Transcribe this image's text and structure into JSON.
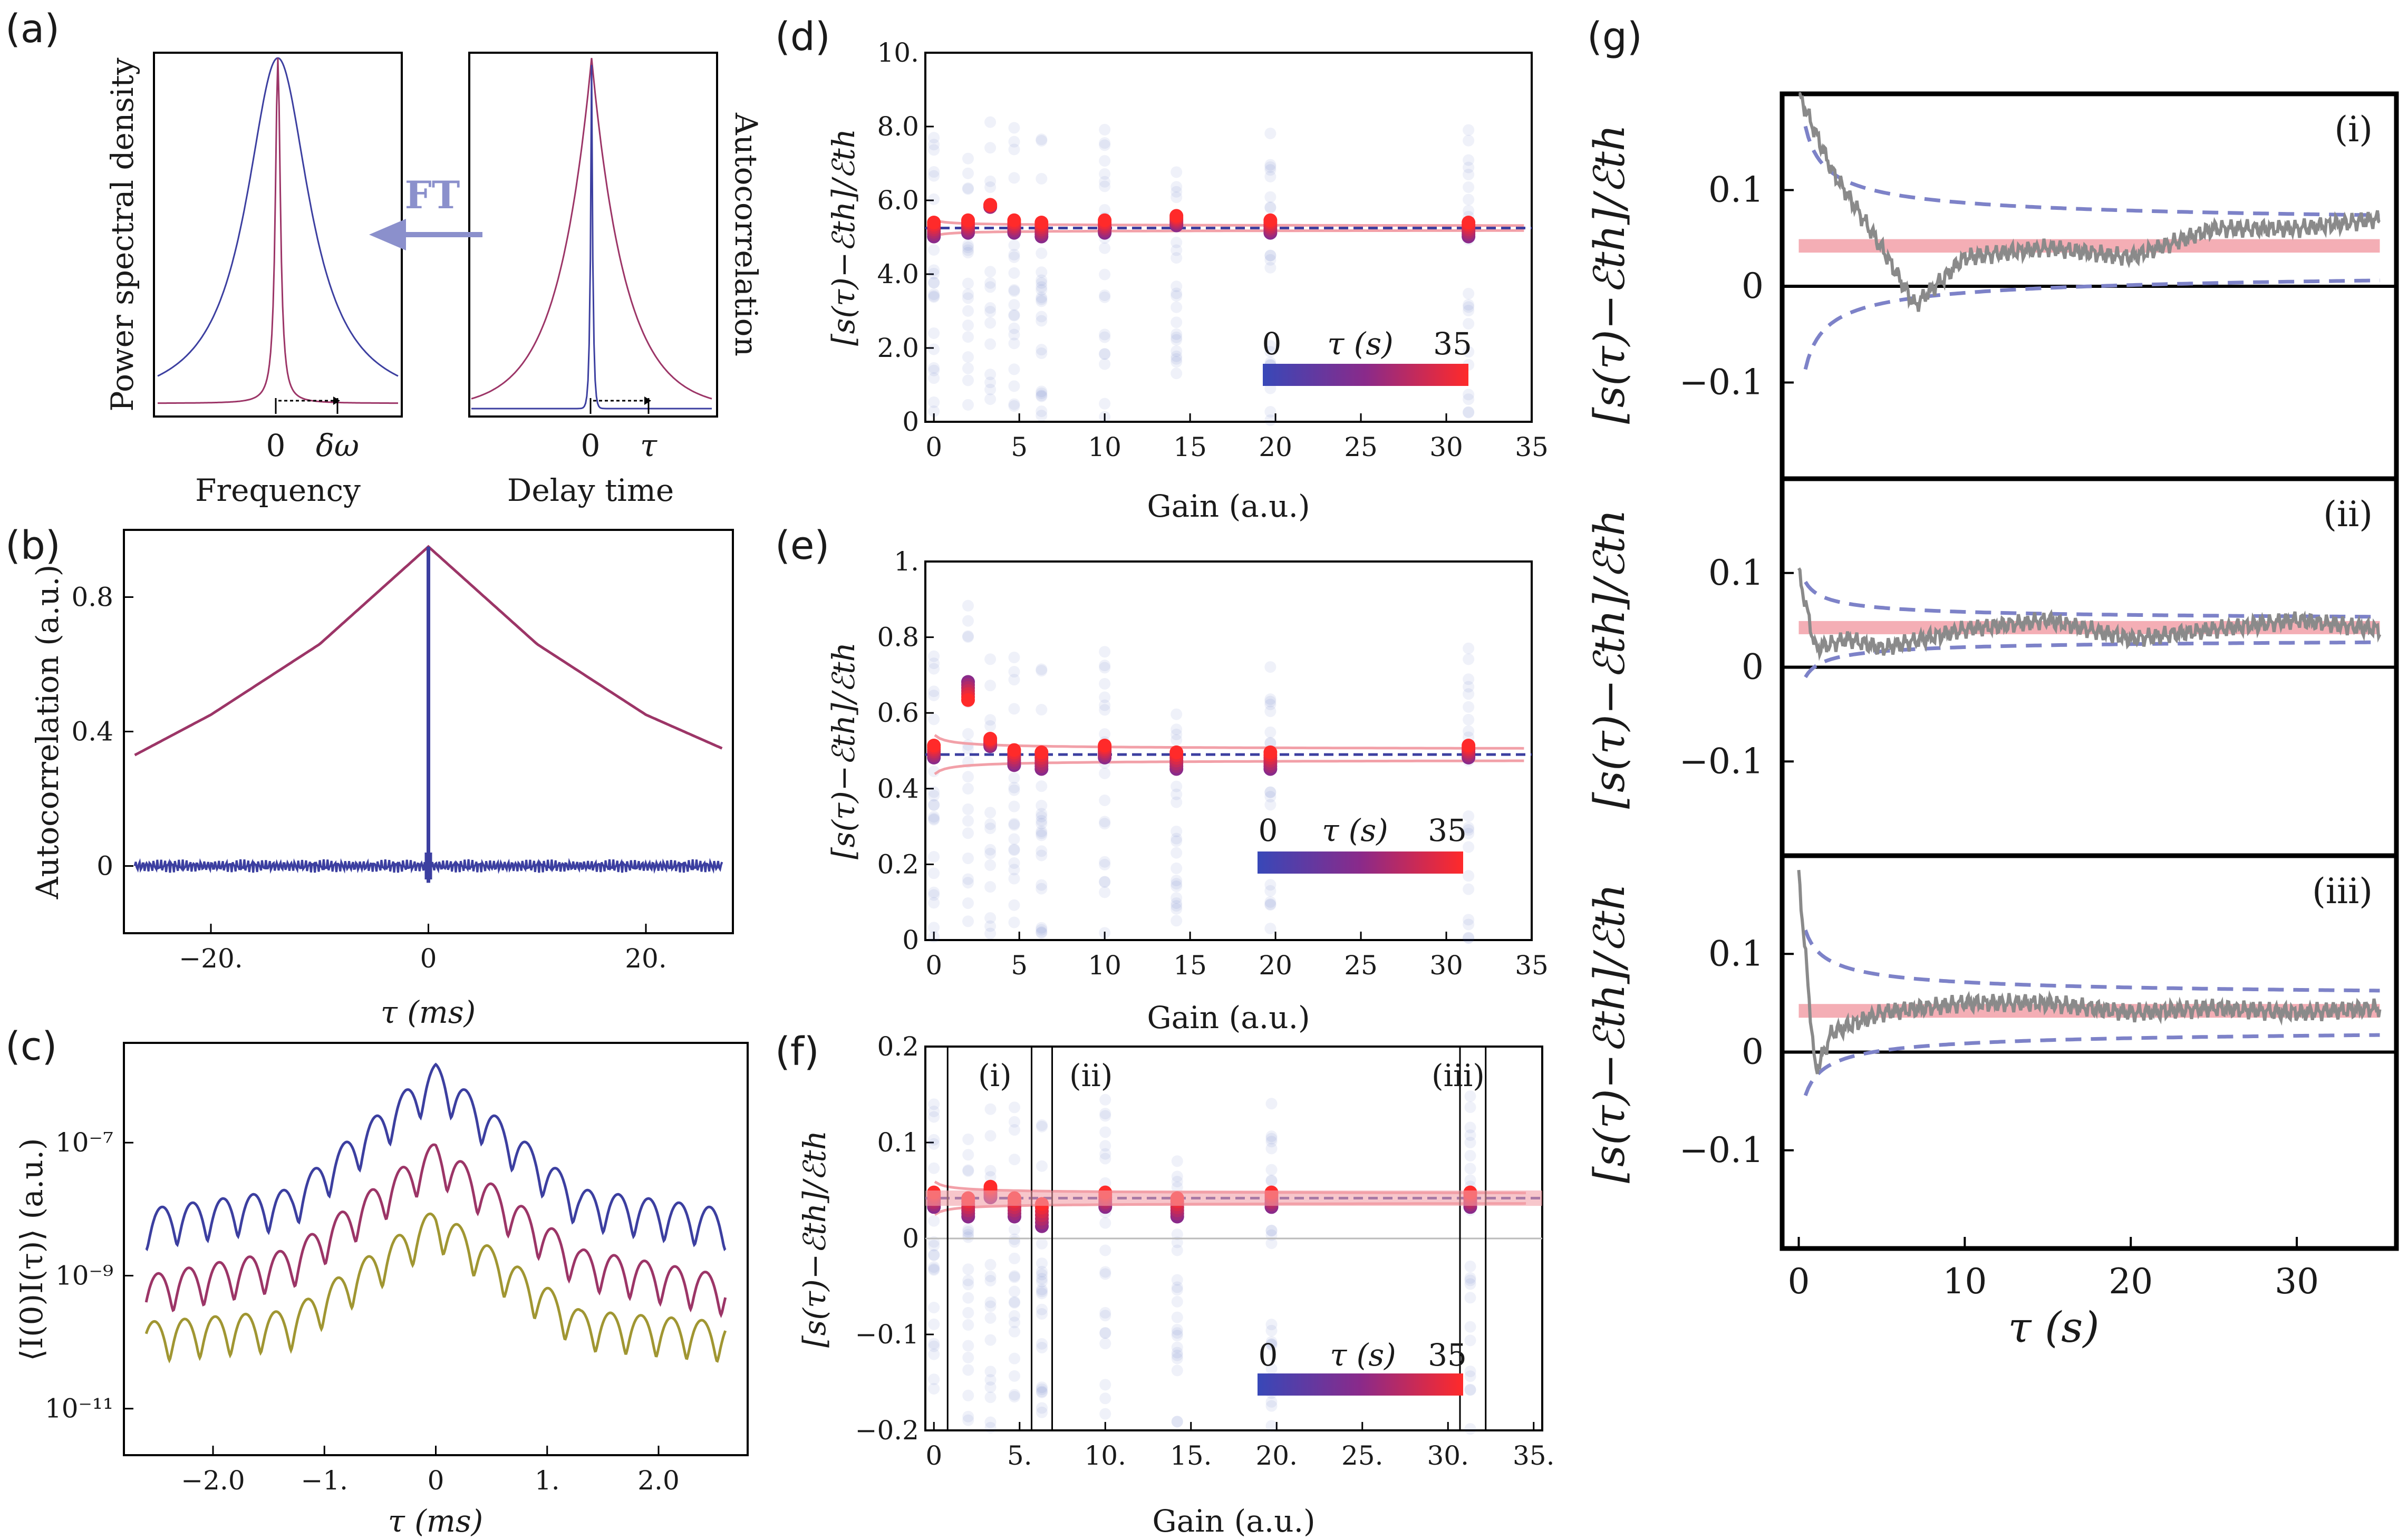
{
  "colors": {
    "blue": "#3c3fa0",
    "magenta": "#9c3567",
    "olive": "#a09632",
    "red": "#ee2a2a",
    "pinkband": "#f2a0a8",
    "gray": "#8a8a8a",
    "dash_blue": "#7d82c8",
    "cmap_low": "#3848b8",
    "cmap_mid": "#8a2a8a",
    "cmap_high": "#ff2a2a"
  },
  "panels": {
    "a": {
      "label": "(a)",
      "ft_label": "FT",
      "left": {
        "ylabel": "Power spectral density",
        "xlabel": "Frequency",
        "tick0": "0",
        "tick1": "δω"
      },
      "right": {
        "ylabel": "Autocorrelation",
        "xlabel": "Delay time",
        "tick0": "0",
        "tick1": "τ"
      }
    },
    "b": {
      "label": "(b)",
      "ylabel": "Autocorrelation (a.u.)",
      "xlabel": "τ (ms)",
      "xticks": [
        "−20.",
        "0",
        "20."
      ],
      "yticks": [
        "0",
        "0.4",
        "0.8"
      ]
    },
    "c": {
      "label": "(c)",
      "ylabel": "⟨I(0)I(τ)⟩ (a.u.)",
      "xlabel": "τ (ms)",
      "xticks": [
        "−2.0",
        "−1.",
        "0",
        "1.",
        "2.0"
      ],
      "yticks": [
        "10⁻⁷",
        "10⁻⁹",
        "10⁻¹¹"
      ]
    },
    "d": {
      "label": "(d)",
      "ylabel": "[s(τ)−ℰth]/ℰth",
      "xlabel": "Gain (a.u.)",
      "xticks": [
        "0",
        "5",
        "10",
        "15",
        "20",
        "25",
        "30",
        "35"
      ],
      "yticks": [
        "0",
        "2.0",
        "4.0",
        "6.0",
        "8.0",
        "10."
      ],
      "cbar": {
        "min": "0",
        "label": "τ (s)",
        "max": "35"
      }
    },
    "e": {
      "label": "(e)",
      "ylabel": "[s(τ)−ℰth]/ℰth",
      "xlabel": "Gain (a.u.)",
      "xticks": [
        "0",
        "5",
        "10",
        "15",
        "20",
        "25",
        "30",
        "35"
      ],
      "yticks": [
        "0",
        "0.2",
        "0.4",
        "0.6",
        "0.8",
        "1."
      ],
      "cbar": {
        "min": "0",
        "label": "τ (s)",
        "max": "35"
      }
    },
    "f": {
      "label": "(f)",
      "ylabel": "[s(τ)−ℰth]/ℰth",
      "xlabel": "Gain (a.u.)",
      "xticks": [
        "0",
        "5.",
        "10.",
        "15.",
        "20.",
        "25.",
        "30.",
        "35."
      ],
      "yticks": [
        "−0.2",
        "−0.1",
        "0",
        "0.1",
        "0.2"
      ],
      "cbar": {
        "min": "0",
        "label": "τ (s)",
        "max": "35"
      },
      "windows": [
        "(i)",
        "(ii)",
        "(iii)"
      ]
    },
    "g": {
      "label": "(g)",
      "ylabel": "[s(τ)−ℰth]/ℰth",
      "xlabel": "τ (s)",
      "xticks": [
        "0",
        "10",
        "20",
        "30"
      ],
      "yticks": [
        "0.1",
        "0",
        "−0.1"
      ],
      "subs": [
        "(i)",
        "(ii)",
        "(iii)"
      ]
    }
  },
  "chart_data": [
    {
      "panel": "b",
      "type": "line",
      "xlabel": "τ (ms)",
      "ylabel": "Autocorrelation (a.u.)",
      "xlim": [
        -28,
        28
      ],
      "ylim": [
        -0.2,
        1.0
      ],
      "series": [
        {
          "x": [
            -27,
            -20,
            -10,
            0,
            10,
            20,
            27
          ],
          "values": [
            0.33,
            0.45,
            0.66,
            0.95,
            0.66,
            0.45,
            0.35
          ]
        },
        {
          "x": [
            -27,
            -10,
            -0.3,
            0,
            0.3,
            10,
            27
          ],
          "values": [
            0.0,
            0.0,
            0.0,
            0.95,
            0.0,
            0.0,
            0.0
          ]
        }
      ]
    },
    {
      "panel": "c",
      "type": "line",
      "xlabel": "τ (ms)",
      "ylabel": "⟨I(0)I(τ)⟩ (a.u.)",
      "yscale": "log",
      "xlim": [
        -2.8,
        2.8
      ],
      "series": [
        {
          "x": [
            -2.6,
            -1.3,
            0,
            1.3,
            2.6
          ],
          "values": [
            1e-08,
            2e-08,
            1.5e-06,
            2e-08,
            1e-08
          ]
        },
        {
          "x": [
            -2.6,
            -1.3,
            0,
            1.3,
            2.6
          ],
          "values": [
            1e-09,
            2.5e-09,
            1e-07,
            2.5e-09,
            1e-09
          ]
        },
        {
          "x": [
            -2.6,
            -1.3,
            0,
            1.3,
            2.6
          ],
          "values": [
            2e-10,
            3e-10,
            1e-08,
            3e-10,
            2e-10
          ]
        }
      ]
    },
    {
      "panel": "d",
      "type": "scatter",
      "xlabel": "Gain (a.u.)",
      "ylabel": "[s(τ)−ℰth]/ℰth",
      "xlim": [
        -0.5,
        35
      ],
      "ylim": [
        0,
        10
      ],
      "x": [
        0,
        2,
        3.3,
        4.7,
        6.3,
        10,
        14.2,
        19.7,
        31.3
      ],
      "series": [
        {
          "values": [
            5.2,
            5.3,
            6.0,
            5.3,
            5.2,
            5.3,
            5.5,
            5.3,
            5.2
          ]
        }
      ],
      "reference": 5.25
    },
    {
      "panel": "e",
      "type": "scatter",
      "xlabel": "Gain (a.u.)",
      "ylabel": "[s(τ)−ℰth]/ℰth",
      "xlim": [
        -0.5,
        35
      ],
      "ylim": [
        0,
        1
      ],
      "x": [
        0,
        2,
        3.3,
        4.7,
        6.3,
        10,
        14.2,
        19.7,
        31.3
      ],
      "series": [
        {
          "values": [
            0.5,
            0.7,
            0.53,
            0.48,
            0.47,
            0.5,
            0.47,
            0.47,
            0.5
          ]
        }
      ],
      "reference": 0.49
    },
    {
      "panel": "f",
      "type": "scatter",
      "xlabel": "Gain (a.u.)",
      "ylabel": "[s(τ)−ℰth]/ℰth",
      "xlim": [
        -0.5,
        35.5
      ],
      "ylim": [
        -0.2,
        0.2
      ],
      "x": [
        0,
        2,
        3.3,
        4.7,
        6.3,
        10,
        14.2,
        19.7,
        31.3
      ],
      "series": [
        {
          "values": [
            0.04,
            0.03,
            0.05,
            0.03,
            0.02,
            0.04,
            0.03,
            0.04,
            0.04
          ]
        }
      ],
      "reference": 0.042
    },
    {
      "panel": "g",
      "type": "line",
      "xlabel": "τ (s)",
      "ylabel": "[s(τ)−ℰth]/ℰth",
      "xlim": [
        -1,
        36
      ],
      "ylim": [
        -0.2,
        0.2
      ],
      "series": [
        {
          "x": [
            0,
            2,
            5,
            7,
            10,
            15,
            20,
            25,
            30,
            35
          ],
          "values": [
            0.2,
            0.12,
            0.04,
            -0.02,
            0.03,
            0.04,
            0.03,
            0.06,
            0.06,
            0.07
          ]
        },
        {
          "x": [
            0,
            1,
            3,
            5,
            10,
            15,
            20,
            25,
            30,
            35
          ],
          "values": [
            0.1,
            0.02,
            0.03,
            0.02,
            0.04,
            0.05,
            0.03,
            0.04,
            0.05,
            0.04
          ]
        },
        {
          "x": [
            0,
            0.5,
            1,
            2,
            5,
            10,
            15,
            20,
            25,
            30,
            35
          ],
          "values": [
            0.18,
            0.08,
            -0.02,
            0.02,
            0.04,
            0.05,
            0.05,
            0.04,
            0.045,
            0.04,
            0.045
          ]
        }
      ],
      "reference": 0.042
    }
  ]
}
